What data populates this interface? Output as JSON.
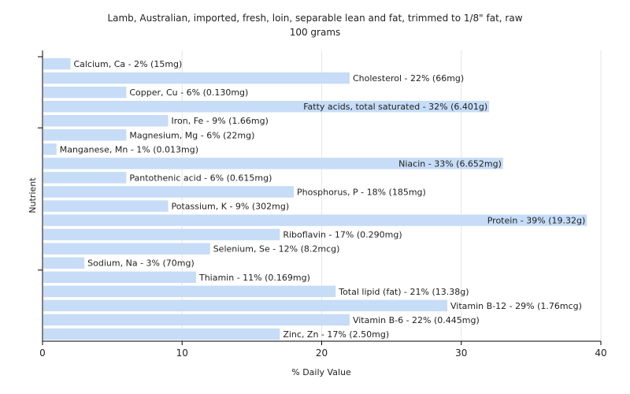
{
  "chart_data": {
    "type": "bar",
    "orientation": "horizontal",
    "title": "Lamb, Australian, imported, fresh, loin, separable lean and fat, trimmed to 1/8\" fat, raw",
    "subtitle": "100 grams",
    "xlabel": "% Daily Value",
    "ylabel": "Nutrient",
    "xlim": [
      0,
      40
    ],
    "xticks": [
      0,
      10,
      20,
      30,
      40
    ],
    "grid": true,
    "bar_color": "#c6dcf7",
    "categories": [
      "Calcium, Ca",
      "Cholesterol",
      "Copper, Cu",
      "Fatty acids, total saturated",
      "Iron, Fe",
      "Magnesium, Mg",
      "Manganese, Mn",
      "Niacin",
      "Pantothenic acid",
      "Phosphorus, P",
      "Potassium, K",
      "Protein",
      "Riboflavin",
      "Selenium, Se",
      "Sodium, Na",
      "Thiamin",
      "Total lipid (fat)",
      "Vitamin B-12",
      "Vitamin B-6",
      "Zinc, Zn"
    ],
    "values": [
      2,
      22,
      6,
      32,
      9,
      6,
      1,
      33,
      6,
      18,
      9,
      39,
      17,
      12,
      3,
      11,
      21,
      29,
      22,
      17
    ],
    "labels": [
      "Calcium, Ca - 2% (15mg)",
      "Cholesterol - 22% (66mg)",
      "Copper, Cu - 6% (0.130mg)",
      "Fatty acids, total saturated - 32% (6.401g)",
      "Iron, Fe - 9% (1.66mg)",
      "Magnesium, Mg - 6% (22mg)",
      "Manganese, Mn - 1% (0.013mg)",
      "Niacin - 33% (6.652mg)",
      "Pantothenic acid - 6% (0.615mg)",
      "Phosphorus, P - 18% (185mg)",
      "Potassium, K - 9% (302mg)",
      "Protein - 39% (19.32g)",
      "Riboflavin - 17% (0.290mg)",
      "Selenium, Se - 12% (8.2mcg)",
      "Sodium, Na - 3% (70mg)",
      "Thiamin - 11% (0.169mg)",
      "Total lipid (fat) - 21% (13.38g)",
      "Vitamin B-12 - 29% (1.76mcg)",
      "Vitamin B-6 - 22% (0.445mg)",
      "Zinc, Zn - 17% (2.50mg)"
    ]
  }
}
